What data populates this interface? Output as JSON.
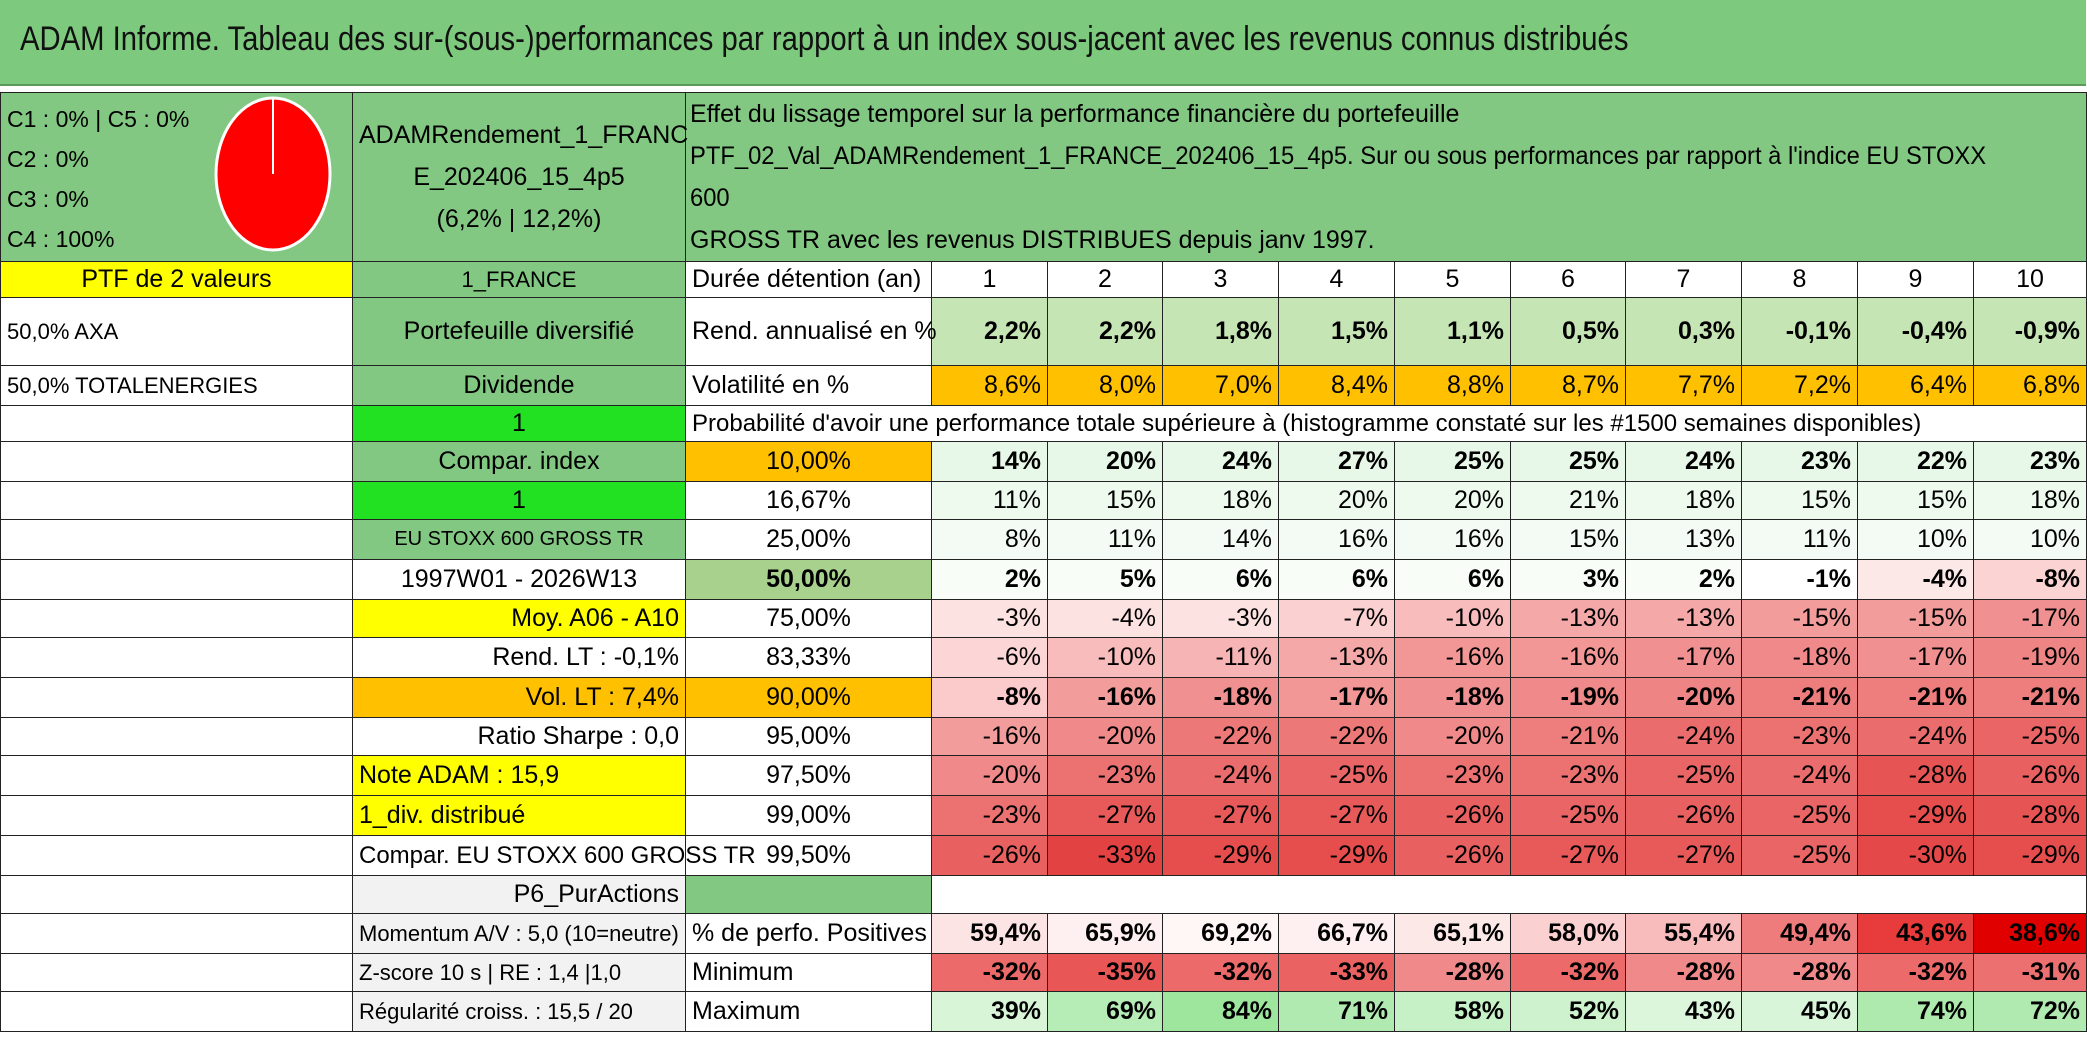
{
  "title": "ADAM Informe. Tableau des sur-(sous-)performances par rapport à un index sous-jacent avec les revenus connus distribués",
  "composition": {
    "lines": [
      "C1 : 0% | C5 : 0%",
      "C2 : 0%",
      "C3 : 0%",
      "C4 : 100%"
    ],
    "pie_value": 100,
    "pie_color": "#ff0000"
  },
  "portfolio": {
    "name_line1": "ADAMRendement_1_FRANC",
    "name_line2": "E_202406_15_4p5",
    "name_line3": "(6,2% | 12,2%)",
    "effect_line1": "Effet du lissage temporel sur la performance financière du portefeuille",
    "effect_line2": "PTF_02_Val_ADAMRendement_1_FRANCE_202406_15_4p5. Sur ou sous performances par rapport à l'indice EU STOXX 600",
    "effect_line3": "GROSS TR avec les revenus DISTRIBUES depuis janv 1997."
  },
  "left": {
    "ptf_count": "PTF de 2 valeurs",
    "holding1": "50,0% AXA",
    "holding2": "50,0% TOTALENERGIES",
    "region": "1_FRANCE",
    "type": "Portefeuille diversifié",
    "income": "Dividende",
    "sel1": "1",
    "compar": "Compar. index",
    "sel2": "1",
    "index": "EU STOXX 600 GROSS TR",
    "period": "1997W01 - 2026W13",
    "moy": "Moy. A06 - A10",
    "rend_lt": "Rend. LT : -0,1%",
    "vol_lt": "Vol. LT : 7,4%",
    "sharpe": "Ratio Sharpe : 0,0",
    "note": "Note ADAM : 15,9",
    "div": "1_div. distribué",
    "compar_long": "Compar. EU STOXX 600 GROSS TR",
    "p6": "P6_PurActions",
    "momentum": "Momentum A/V : 5,0 (10=neutre)",
    "zscore": "Z-score 10 s | RE : 1,4 |1,0",
    "regularite": "Régularité croiss. : 15,5 / 20"
  },
  "table": {
    "duration_label": "Durée détention (an)",
    "durations": [
      "1",
      "2",
      "3",
      "4",
      "5",
      "6",
      "7",
      "8",
      "9",
      "10"
    ],
    "rend_label": "Rend. annualisé en %",
    "rend": [
      "2,2%",
      "2,2%",
      "1,8%",
      "1,5%",
      "1,1%",
      "0,5%",
      "0,3%",
      "-0,1%",
      "-0,4%",
      "-0,9%"
    ],
    "vol_label": "Volatilité en %",
    "vol": [
      "8,6%",
      "8,0%",
      "7,0%",
      "8,4%",
      "8,8%",
      "8,7%",
      "7,7%",
      "7,2%",
      "6,4%",
      "6,8%"
    ],
    "prob_header": "Probabilité d'avoir une performance totale supérieure à (histogramme constaté sur les #1500 semaines disponibles)",
    "quantiles": [
      {
        "q": "10,00%",
        "vals": [
          "14%",
          "20%",
          "24%",
          "27%",
          "25%",
          "25%",
          "24%",
          "23%",
          "22%",
          "23%"
        ]
      },
      {
        "q": "16,67%",
        "vals": [
          "11%",
          "15%",
          "18%",
          "20%",
          "20%",
          "21%",
          "18%",
          "15%",
          "15%",
          "18%"
        ]
      },
      {
        "q": "25,00%",
        "vals": [
          "8%",
          "11%",
          "14%",
          "16%",
          "16%",
          "15%",
          "13%",
          "11%",
          "10%",
          "10%"
        ]
      },
      {
        "q": "50,00%",
        "vals": [
          "2%",
          "5%",
          "6%",
          "6%",
          "6%",
          "3%",
          "2%",
          "-1%",
          "-4%",
          "-8%"
        ]
      },
      {
        "q": "75,00%",
        "vals": [
          "-3%",
          "-4%",
          "-3%",
          "-7%",
          "-10%",
          "-13%",
          "-13%",
          "-15%",
          "-15%",
          "-17%"
        ]
      },
      {
        "q": "83,33%",
        "vals": [
          "-6%",
          "-10%",
          "-11%",
          "-13%",
          "-16%",
          "-16%",
          "-17%",
          "-18%",
          "-17%",
          "-19%"
        ]
      },
      {
        "q": "90,00%",
        "vals": [
          "-8%",
          "-16%",
          "-18%",
          "-17%",
          "-18%",
          "-19%",
          "-20%",
          "-21%",
          "-21%",
          "-21%"
        ]
      },
      {
        "q": "95,00%",
        "vals": [
          "-16%",
          "-20%",
          "-22%",
          "-22%",
          "-20%",
          "-21%",
          "-24%",
          "-23%",
          "-24%",
          "-25%"
        ]
      },
      {
        "q": "97,50%",
        "vals": [
          "-20%",
          "-23%",
          "-24%",
          "-25%",
          "-23%",
          "-23%",
          "-25%",
          "-24%",
          "-28%",
          "-26%"
        ]
      },
      {
        "q": "99,00%",
        "vals": [
          "-23%",
          "-27%",
          "-27%",
          "-27%",
          "-26%",
          "-25%",
          "-26%",
          "-25%",
          "-29%",
          "-28%"
        ]
      },
      {
        "q": "99,50%",
        "vals": [
          "-26%",
          "-33%",
          "-29%",
          "-29%",
          "-26%",
          "-27%",
          "-27%",
          "-25%",
          "-30%",
          "-29%"
        ]
      }
    ],
    "pos_label": "% de perfo. Positives",
    "pos": [
      "59,4%",
      "65,9%",
      "69,2%",
      "66,7%",
      "65,1%",
      "58,0%",
      "55,4%",
      "49,4%",
      "43,6%",
      "38,6%"
    ],
    "min_label": "Minimum",
    "min": [
      "-32%",
      "-35%",
      "-32%",
      "-33%",
      "-28%",
      "-32%",
      "-28%",
      "-28%",
      "-32%",
      "-31%"
    ],
    "max_label": "Maximum",
    "max": [
      "39%",
      "69%",
      "84%",
      "71%",
      "58%",
      "52%",
      "43%",
      "45%",
      "74%",
      "72%"
    ]
  },
  "colors": {
    "header_green": "#7dc97d",
    "yellow": "#ffff00",
    "orange": "#ffc000",
    "lime": "#22e022",
    "red_text": "#e00000"
  }
}
